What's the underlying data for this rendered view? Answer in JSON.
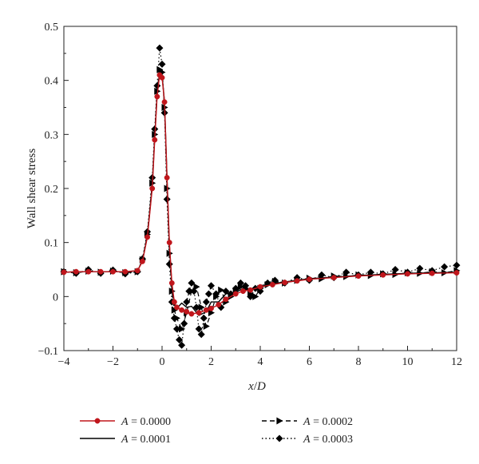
{
  "chart_data": {
    "type": "line",
    "xlabel": "x/D",
    "ylabel": "Wall shear stress",
    "xlim": [
      -4,
      12
    ],
    "ylim": [
      -0.1,
      0.5
    ],
    "xticks": [
      "−4",
      "−2",
      "0",
      "2",
      "4",
      "6",
      "8",
      "10",
      "12"
    ],
    "yticks": [
      "−0.1",
      "0",
      "0.1",
      "0.2",
      "0.3",
      "0.4",
      "0.5"
    ],
    "grid": false,
    "legend_position": "bottom",
    "series": [
      {
        "name": "A = 0.0000",
        "legend_prefix": "A",
        "legend_value": " = 0.0000",
        "color": "#c0161c",
        "line": "solid",
        "marker": "circle",
        "x": [
          -4,
          -3.5,
          -3,
          -2.5,
          -2,
          -1.5,
          -1.0,
          -0.8,
          -0.6,
          -0.4,
          -0.3,
          -0.2,
          -0.1,
          0.0,
          0.1,
          0.2,
          0.3,
          0.4,
          0.5,
          0.6,
          0.8,
          1.0,
          1.2,
          1.5,
          1.8,
          2.0,
          2.3,
          2.6,
          3.0,
          3.3,
          3.6,
          4.0,
          4.5,
          5.0,
          5.5,
          6.0,
          7.0,
          8.0,
          9.0,
          10.0,
          11.0,
          12.0
        ],
        "y": [
          0.045,
          0.046,
          0.046,
          0.046,
          0.046,
          0.046,
          0.048,
          0.065,
          0.11,
          0.2,
          0.29,
          0.37,
          0.41,
          0.405,
          0.36,
          0.22,
          0.1,
          0.025,
          -0.01,
          -0.02,
          -0.025,
          -0.028,
          -0.032,
          -0.03,
          -0.025,
          -0.022,
          -0.015,
          -0.005,
          0.005,
          0.01,
          0.012,
          0.018,
          0.022,
          0.026,
          0.029,
          0.032,
          0.035,
          0.038,
          0.04,
          0.042,
          0.043,
          0.044
        ]
      },
      {
        "name": "A = 0.0001",
        "legend_prefix": "A",
        "legend_value": " = 0.0001",
        "color": "#000000",
        "line": "solid",
        "marker": "none",
        "x": [
          -4,
          -3.5,
          -3,
          -2.5,
          -2,
          -1.5,
          -1.0,
          -0.8,
          -0.6,
          -0.4,
          -0.3,
          -0.2,
          -0.1,
          0.0,
          0.1,
          0.2,
          0.3,
          0.4,
          0.5,
          0.6,
          0.8,
          1.0,
          1.2,
          1.5,
          1.8,
          2.0,
          2.3,
          2.6,
          3.0,
          3.3,
          3.6,
          4.0,
          4.5,
          5.0,
          5.5,
          6.0,
          7.0,
          8.0,
          9.0,
          10.0,
          11.0,
          12.0
        ],
        "y": [
          0.045,
          0.046,
          0.046,
          0.046,
          0.046,
          0.046,
          0.048,
          0.066,
          0.112,
          0.205,
          0.295,
          0.375,
          0.415,
          0.41,
          0.36,
          0.22,
          0.095,
          0.02,
          -0.015,
          -0.022,
          -0.012,
          -0.02,
          -0.018,
          -0.035,
          -0.028,
          -0.01,
          -0.01,
          0.005,
          0.008,
          0.015,
          0.012,
          0.02,
          0.024,
          0.027,
          0.03,
          0.033,
          0.036,
          0.039,
          0.041,
          0.043,
          0.044,
          0.045
        ]
      },
      {
        "name": "A = 0.0002",
        "legend_prefix": "A",
        "legend_value": " = 0.0002",
        "color": "#000000",
        "line": "dashed",
        "marker": "triangle-right",
        "x": [
          -4,
          -3.5,
          -3,
          -2.5,
          -2,
          -1.5,
          -1.0,
          -0.8,
          -0.6,
          -0.4,
          -0.3,
          -0.2,
          -0.1,
          0.0,
          0.1,
          0.2,
          0.3,
          0.4,
          0.5,
          0.6,
          0.8,
          1.0,
          1.2,
          1.4,
          1.6,
          1.8,
          2.0,
          2.2,
          2.4,
          2.6,
          2.8,
          3.0,
          3.2,
          3.4,
          3.6,
          3.8,
          4.0,
          4.3,
          4.6,
          5.0,
          5.5,
          6.0,
          6.5,
          7.0,
          7.5,
          8.0,
          8.5,
          9.0,
          9.5,
          10.0,
          10.5,
          11.0,
          11.5,
          12.0
        ],
        "y": [
          0.046,
          0.044,
          0.047,
          0.045,
          0.047,
          0.044,
          0.046,
          0.068,
          0.115,
          0.21,
          0.3,
          0.38,
          0.42,
          0.415,
          0.35,
          0.2,
          0.08,
          0.01,
          -0.025,
          -0.04,
          -0.06,
          -0.03,
          0.01,
          0.018,
          -0.02,
          -0.055,
          -0.03,
          0.0,
          0.012,
          -0.01,
          0.0,
          0.01,
          0.018,
          0.015,
          0.005,
          0.0,
          0.015,
          0.022,
          0.028,
          0.025,
          0.03,
          0.034,
          0.033,
          0.038,
          0.037,
          0.04,
          0.039,
          0.042,
          0.041,
          0.044,
          0.043,
          0.046,
          0.044,
          0.048
        ]
      },
      {
        "name": "A = 0.0003",
        "legend_prefix": "A",
        "legend_value": " = 0.0003",
        "color": "#000000",
        "line": "dotted",
        "marker": "diamond",
        "x": [
          -4,
          -3.5,
          -3,
          -2.5,
          -2,
          -1.5,
          -1.0,
          -0.8,
          -0.6,
          -0.4,
          -0.3,
          -0.2,
          -0.1,
          0.0,
          0.1,
          0.2,
          0.3,
          0.4,
          0.5,
          0.6,
          0.7,
          0.8,
          0.9,
          1.0,
          1.1,
          1.2,
          1.3,
          1.4,
          1.5,
          1.6,
          1.7,
          1.8,
          1.9,
          2.0,
          2.2,
          2.4,
          2.6,
          2.8,
          3.0,
          3.2,
          3.4,
          3.6,
          3.8,
          4.0,
          4.3,
          4.6,
          5.0,
          5.5,
          6.0,
          6.5,
          7.0,
          7.5,
          8.0,
          8.5,
          9.0,
          9.5,
          10.0,
          10.5,
          11.0,
          11.5,
          12.0
        ],
        "y": [
          0.046,
          0.043,
          0.05,
          0.043,
          0.049,
          0.042,
          0.046,
          0.07,
          0.12,
          0.22,
          0.31,
          0.39,
          0.46,
          0.43,
          0.34,
          0.18,
          0.06,
          -0.01,
          -0.04,
          -0.06,
          -0.08,
          -0.09,
          -0.05,
          -0.01,
          0.01,
          0.025,
          0.01,
          -0.02,
          -0.06,
          -0.07,
          -0.04,
          -0.01,
          0.005,
          0.02,
          0.005,
          -0.02,
          0.01,
          0.005,
          0.015,
          0.025,
          0.02,
          0.0,
          0.015,
          0.01,
          0.025,
          0.03,
          0.025,
          0.035,
          0.03,
          0.04,
          0.035,
          0.045,
          0.04,
          0.045,
          0.042,
          0.05,
          0.045,
          0.052,
          0.048,
          0.055,
          0.058
        ]
      }
    ]
  }
}
